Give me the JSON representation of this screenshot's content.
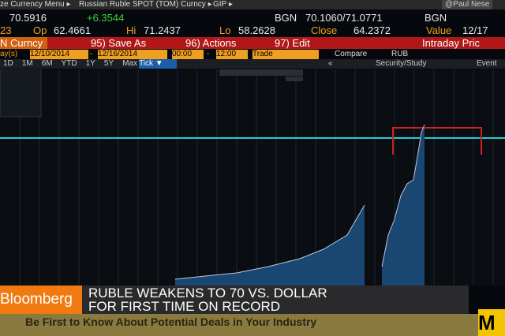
{
  "top_bar": {
    "menu": "ze Currency Menu ▸",
    "security": "Russian Ruble SPOT (TOM) Curncy ▸",
    "gip": "GIP ▸",
    "user": "@Paul Nese"
  },
  "quote": {
    "last": "70.5916",
    "change": "+6.3544",
    "source": "BGN",
    "bid_ask": "70.1060/71.0771",
    "source2": "BGN"
  },
  "stats": {
    "time": "23",
    "open_label": "Op",
    "open": "62.4661",
    "high_label": "Hi",
    "high": "71.2437",
    "low_label": "Lo",
    "low": "58.2628",
    "close_label": "Close",
    "close": "64.2372",
    "value_label": "Value",
    "value": "12/17"
  },
  "menu_bar": {
    "ticker": "N Curncy",
    "save": "95) Save As",
    "actions": "96) Actions",
    "edit": "97) Edit",
    "title": "Intraday Pric"
  },
  "range_bar": {
    "days": "ay(s)",
    "start_date": "12/10/2014",
    "dash1": "-",
    "end_date": "12/16/2014",
    "start_time": "00:00",
    "dash2": "-",
    "end_time": "12:00",
    "mode": "Trade",
    "compare": "Compare",
    "currency": "RUB"
  },
  "period_bar": {
    "periods": [
      "1D",
      "1M",
      "6M",
      "YTD",
      "1Y",
      "5Y",
      "Max"
    ],
    "tick": "Tick ▼",
    "collapse": "«",
    "study": "Security/Study",
    "event": "Event"
  },
  "lower_third": {
    "brand": "Bloomberg",
    "headline": [
      "RUBLE WEAKENS TO 70 VS. DOLLAR",
      "FOR FIRST TIME ON RECORD"
    ],
    "ticker": "Be First to Know About Potential Deals in Your Industry",
    "corner": "M"
  }
}
